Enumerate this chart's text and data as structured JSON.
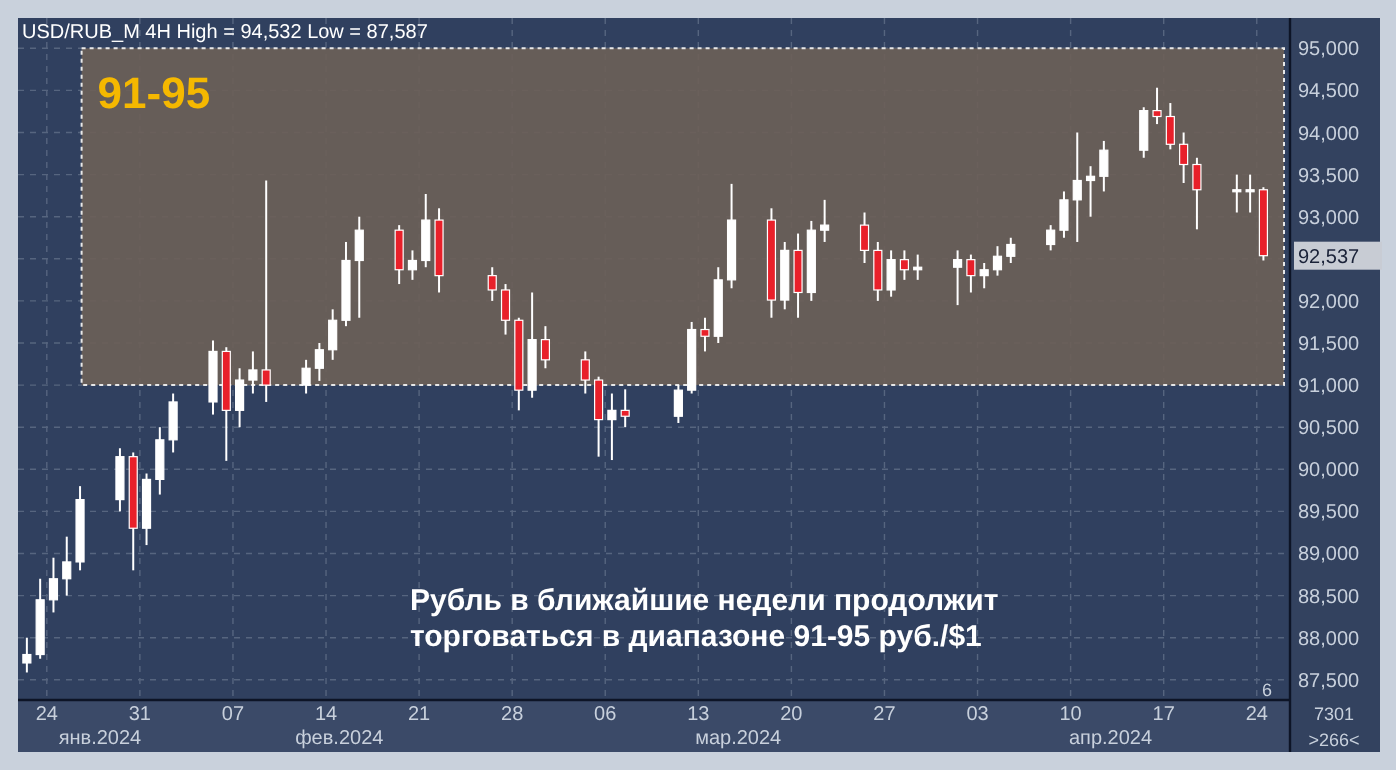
{
  "chart_data": {
    "type": "candlestick",
    "title": "USD/RUB_M 4H High = 94,532 Low = 87,587",
    "x": [
      "2024-01-22T12:00",
      "2024-01-23T12:00",
      "2024-01-24T12:00",
      "2024-01-25T12:00",
      "2024-01-26T12:00",
      "2024-01-29T12:00",
      "2024-01-30T12:00",
      "2024-01-31T12:00",
      "2024-02-01T12:00",
      "2024-02-02T12:00",
      "2024-02-05T12:00",
      "2024-02-06T12:00",
      "2024-02-07T12:00",
      "2024-02-08T12:00",
      "2024-02-09T12:00",
      "2024-02-12T12:00",
      "2024-02-13T12:00",
      "2024-02-14T12:00",
      "2024-02-15T12:00",
      "2024-02-16T12:00",
      "2024-02-19T12:00",
      "2024-02-20T12:00",
      "2024-02-21T12:00",
      "2024-02-22T12:00",
      "2024-02-26T12:00",
      "2024-02-27T12:00",
      "2024-02-28T12:00",
      "2024-02-29T12:00",
      "2024-03-01T12:00",
      "2024-03-04T12:00",
      "2024-03-05T12:00",
      "2024-03-06T12:00",
      "2024-03-07T12:00",
      "2024-03-11T12:00",
      "2024-03-12T12:00",
      "2024-03-13T12:00",
      "2024-03-14T12:00",
      "2024-03-15T12:00",
      "2024-03-18T12:00",
      "2024-03-19T12:00",
      "2024-03-20T12:00",
      "2024-03-21T12:00",
      "2024-03-22T12:00",
      "2024-03-25T12:00",
      "2024-03-26T12:00",
      "2024-03-27T12:00",
      "2024-03-28T12:00",
      "2024-03-29T12:00",
      "2024-04-01T12:00",
      "2024-04-02T12:00",
      "2024-04-03T12:00",
      "2024-04-04T12:00",
      "2024-04-05T12:00",
      "2024-04-08T12:00",
      "2024-04-09T12:00",
      "2024-04-10T12:00",
      "2024-04-11T12:00",
      "2024-04-12T12:00",
      "2024-04-15T12:00",
      "2024-04-16T12:00",
      "2024-04-17T12:00",
      "2024-04-18T12:00",
      "2024-04-19T12:00",
      "2024-04-22T12:00",
      "2024-04-23T12:00",
      "2024-04-24T12:00"
    ],
    "ohlc": [
      [
        87700,
        88000,
        87587,
        87800
      ],
      [
        87800,
        88700,
        87750,
        88450
      ],
      [
        88450,
        88950,
        88300,
        88700
      ],
      [
        88700,
        89200,
        88500,
        88900
      ],
      [
        88900,
        89800,
        88800,
        89640
      ],
      [
        89640,
        90250,
        89500,
        90150
      ],
      [
        90150,
        90200,
        88800,
        89300
      ],
      [
        89300,
        89950,
        89100,
        89880
      ],
      [
        89880,
        90500,
        89700,
        90350
      ],
      [
        90350,
        90900,
        90200,
        90800
      ],
      [
        90800,
        91530,
        90650,
        91400
      ],
      [
        91400,
        91450,
        90100,
        90700
      ],
      [
        90700,
        91200,
        90500,
        91060
      ],
      [
        91060,
        91400,
        90900,
        91180
      ],
      [
        91180,
        93430,
        90800,
        91000
      ],
      [
        91000,
        91300,
        90900,
        91200
      ],
      [
        91200,
        91500,
        91050,
        91420
      ],
      [
        91420,
        91900,
        91300,
        91770
      ],
      [
        91770,
        92700,
        91700,
        92480
      ],
      [
        92480,
        93000,
        91800,
        92840
      ],
      [
        92840,
        92900,
        92200,
        92370
      ],
      [
        92370,
        92600,
        92250,
        92480
      ],
      [
        92480,
        93270,
        92400,
        92960
      ],
      [
        92960,
        93100,
        92100,
        92300
      ],
      [
        92300,
        92400,
        92000,
        92130
      ],
      [
        92130,
        92200,
        91600,
        91770
      ],
      [
        91770,
        91800,
        90700,
        90940
      ],
      [
        90940,
        92100,
        90850,
        91540
      ],
      [
        91540,
        91700,
        91200,
        91300
      ],
      [
        91300,
        91400,
        90900,
        91060
      ],
      [
        91060,
        91100,
        90150,
        90590
      ],
      [
        90590,
        90900,
        90110,
        90700
      ],
      [
        90700,
        90950,
        90500,
        90630
      ],
      [
        90630,
        91000,
        90550,
        90940
      ],
      [
        90940,
        91750,
        90900,
        91660
      ],
      [
        91660,
        91800,
        91400,
        91580
      ],
      [
        91580,
        92400,
        91500,
        92250
      ],
      [
        92250,
        93390,
        92150,
        92960
      ],
      [
        92960,
        93100,
        91800,
        92010
      ],
      [
        92010,
        92700,
        91900,
        92600
      ],
      [
        92600,
        92800,
        91800,
        92100
      ],
      [
        92100,
        92950,
        92000,
        92840
      ],
      [
        92840,
        93200,
        92700,
        92900
      ],
      [
        92900,
        93050,
        92450,
        92600
      ],
      [
        92600,
        92700,
        92000,
        92130
      ],
      [
        92130,
        92600,
        92050,
        92490
      ],
      [
        92490,
        92600,
        92250,
        92370
      ],
      [
        92370,
        92550,
        92250,
        92400
      ],
      [
        92400,
        92600,
        91950,
        92490
      ],
      [
        92490,
        92550,
        92100,
        92300
      ],
      [
        92300,
        92450,
        92150,
        92370
      ],
      [
        92370,
        92650,
        92300,
        92530
      ],
      [
        92530,
        92750,
        92450,
        92670
      ],
      [
        92670,
        92900,
        92600,
        92840
      ],
      [
        92840,
        93300,
        92750,
        93200
      ],
      [
        93200,
        94000,
        92700,
        93430
      ],
      [
        93430,
        93600,
        93000,
        93480
      ],
      [
        93480,
        93900,
        93300,
        93790
      ],
      [
        93790,
        94300,
        93700,
        94260
      ],
      [
        94260,
        94532,
        94100,
        94190
      ],
      [
        94190,
        94350,
        93800,
        93860
      ],
      [
        93860,
        94000,
        93400,
        93620
      ],
      [
        93620,
        93700,
        92850,
        93320
      ],
      [
        93320,
        93500,
        93050,
        93320
      ],
      [
        93320,
        93500,
        93050,
        93320
      ],
      [
        93320,
        93350,
        92480,
        92537
      ]
    ],
    "color": "#ffffff",
    "xlim": [
      "2024-01-21T20:00",
      "2024-04-26T12:00"
    ],
    "xticks": [
      {
        "value": "2024-01-24",
        "label": "24"
      },
      {
        "value": "2024-01-31",
        "label": "31"
      },
      {
        "value": "2024-02-07",
        "label": "07"
      },
      {
        "value": "2024-02-14",
        "label": "14"
      },
      {
        "value": "2024-02-21",
        "label": "21"
      },
      {
        "value": "2024-02-28",
        "label": "28"
      },
      {
        "value": "2024-03-06",
        "label": "06"
      },
      {
        "value": "2024-03-13",
        "label": "13"
      },
      {
        "value": "2024-03-20",
        "label": "20"
      },
      {
        "value": "2024-03-27",
        "label": "27"
      },
      {
        "value": "2024-04-03",
        "label": "03"
      },
      {
        "value": "2024-04-10",
        "label": "10"
      },
      {
        "value": "2024-04-17",
        "label": "17"
      },
      {
        "value": "2024-04-24",
        "label": "24"
      }
    ],
    "x2lim": [
      "2024-01-21T20:00",
      "2024-04-26T12:00"
    ],
    "x2ticks": [
      {
        "value": "2024-01-28",
        "label": "янв.2024"
      },
      {
        "value": "2024-02-15",
        "label": "фев.2024"
      },
      {
        "value": "2024-03-16",
        "label": "мар.2024"
      },
      {
        "value": "2024-04-13",
        "label": "апр.2024"
      }
    ],
    "ylim": [
      87260,
      95360
    ],
    "yticks": [
      {
        "value": 87500,
        "label": "87,500"
      },
      {
        "value": 88000,
        "label": "88,000"
      },
      {
        "value": 88500,
        "label": "88,500"
      },
      {
        "value": 89000,
        "label": "89,000"
      },
      {
        "value": 89500,
        "label": "89,500"
      },
      {
        "value": 90000,
        "label": "90,000"
      },
      {
        "value": 90500,
        "label": "90,500"
      },
      {
        "value": 91000,
        "label": "91,000"
      },
      {
        "value": 91500,
        "label": "91,500"
      },
      {
        "value": 92000,
        "label": "92,000"
      },
      {
        "value": 92500,
        "label": null
      },
      {
        "value": 93000,
        "label": "93,000"
      },
      {
        "value": 93500,
        "label": "93,500"
      },
      {
        "value": 94000,
        "label": "94,000"
      },
      {
        "value": 94500,
        "label": "94,500"
      },
      {
        "value": 95000,
        "label": "95,000"
      }
    ],
    "bands": [
      {
        "axis": "y",
        "from": 91000,
        "to": 95000,
        "label": "91-95",
        "color": "#6b5f58"
      }
    ],
    "grid": true,
    "annotations": [
      "Рубль в ближайшие недели продолжит\nторговаться в диапазоне 91-95 руб./$1",
      "6",
      "7301",
      ">266<",
      {
        "text": "92,537",
        "x": "2024-04-24T12:00",
        "y": 92537
      }
    ]
  }
}
